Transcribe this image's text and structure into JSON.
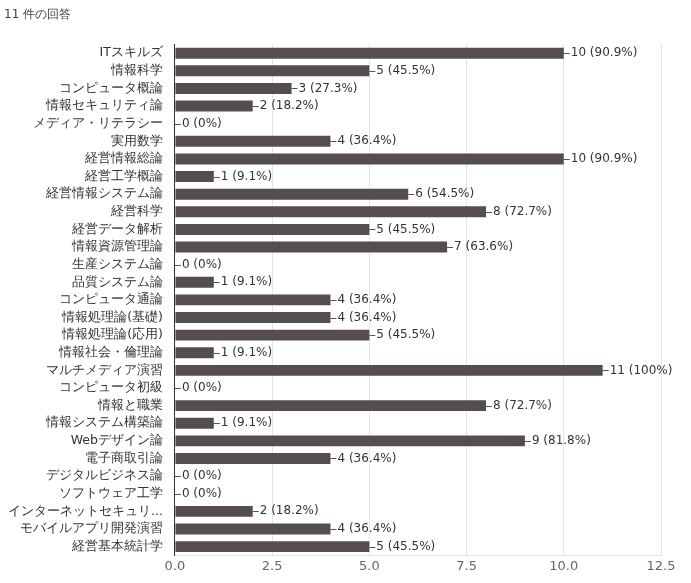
{
  "chart_data": {
    "type": "bar",
    "title": "11 件の回答",
    "orientation": "horizontal",
    "categories": [
      "ITスキルズ",
      "情報科学",
      "コンピュータ概論",
      "情報セキュリティ論",
      "メディア・リテラシー",
      "実用数学",
      "経営情報総論",
      "経営工学概論",
      "経営情報システム論",
      "経営科学",
      "経営データ解析",
      "情報資源管理論",
      "生産システム論",
      "品質システム論",
      "コンピュータ通論",
      "情報処理論(基礎)",
      "情報処理論(応用)",
      "情報社会・倫理論",
      "マルチメディア演習",
      "コンピュータ初級",
      "情報と職業",
      "情報システム構築論",
      "Webデザイン論",
      "電子商取引論",
      "デジタルビジネス論",
      "ソフトウェア工学",
      "インターネットセキュリ...",
      "モバイルアプリ開発演習",
      "経営基本統計学"
    ],
    "values": [
      10,
      5,
      3,
      2,
      0,
      4,
      10,
      1,
      6,
      8,
      5,
      7,
      0,
      1,
      4,
      4,
      5,
      1,
      11,
      0,
      8,
      1,
      9,
      4,
      0,
      0,
      2,
      4,
      5
    ],
    "value_labels": [
      "10 (90.9%)",
      "5 (45.5%)",
      "3 (27.3%)",
      "2 (18.2%)",
      "0 (0%)",
      "4 (36.4%)",
      "10 (90.9%)",
      "1 (9.1%)",
      "6 (54.5%)",
      "8 (72.7%)",
      "5 (45.5%)",
      "7 (63.6%)",
      "0 (0%)",
      "1 (9.1%)",
      "4 (36.4%)",
      "4 (36.4%)",
      "5 (45.5%)",
      "1 (9.1%)",
      "11 (100%)",
      "0 (0%)",
      "8 (72.7%)",
      "1 (9.1%)",
      "9 (81.8%)",
      "4 (36.4%)",
      "0 (0%)",
      "0 (0%)",
      "2 (18.2%)",
      "4 (36.4%)",
      "5 (45.5%)"
    ],
    "data_labels": true,
    "color": "#564e4e",
    "xlim": [
      0,
      12.5
    ],
    "xticks": [
      {
        "value": 0,
        "label": "0.0"
      },
      2.5,
      {
        "value": 5,
        "label": "5.0"
      },
      7.5,
      {
        "value": 10,
        "label": "10.0"
      },
      12.5
    ],
    "grid": true
  }
}
